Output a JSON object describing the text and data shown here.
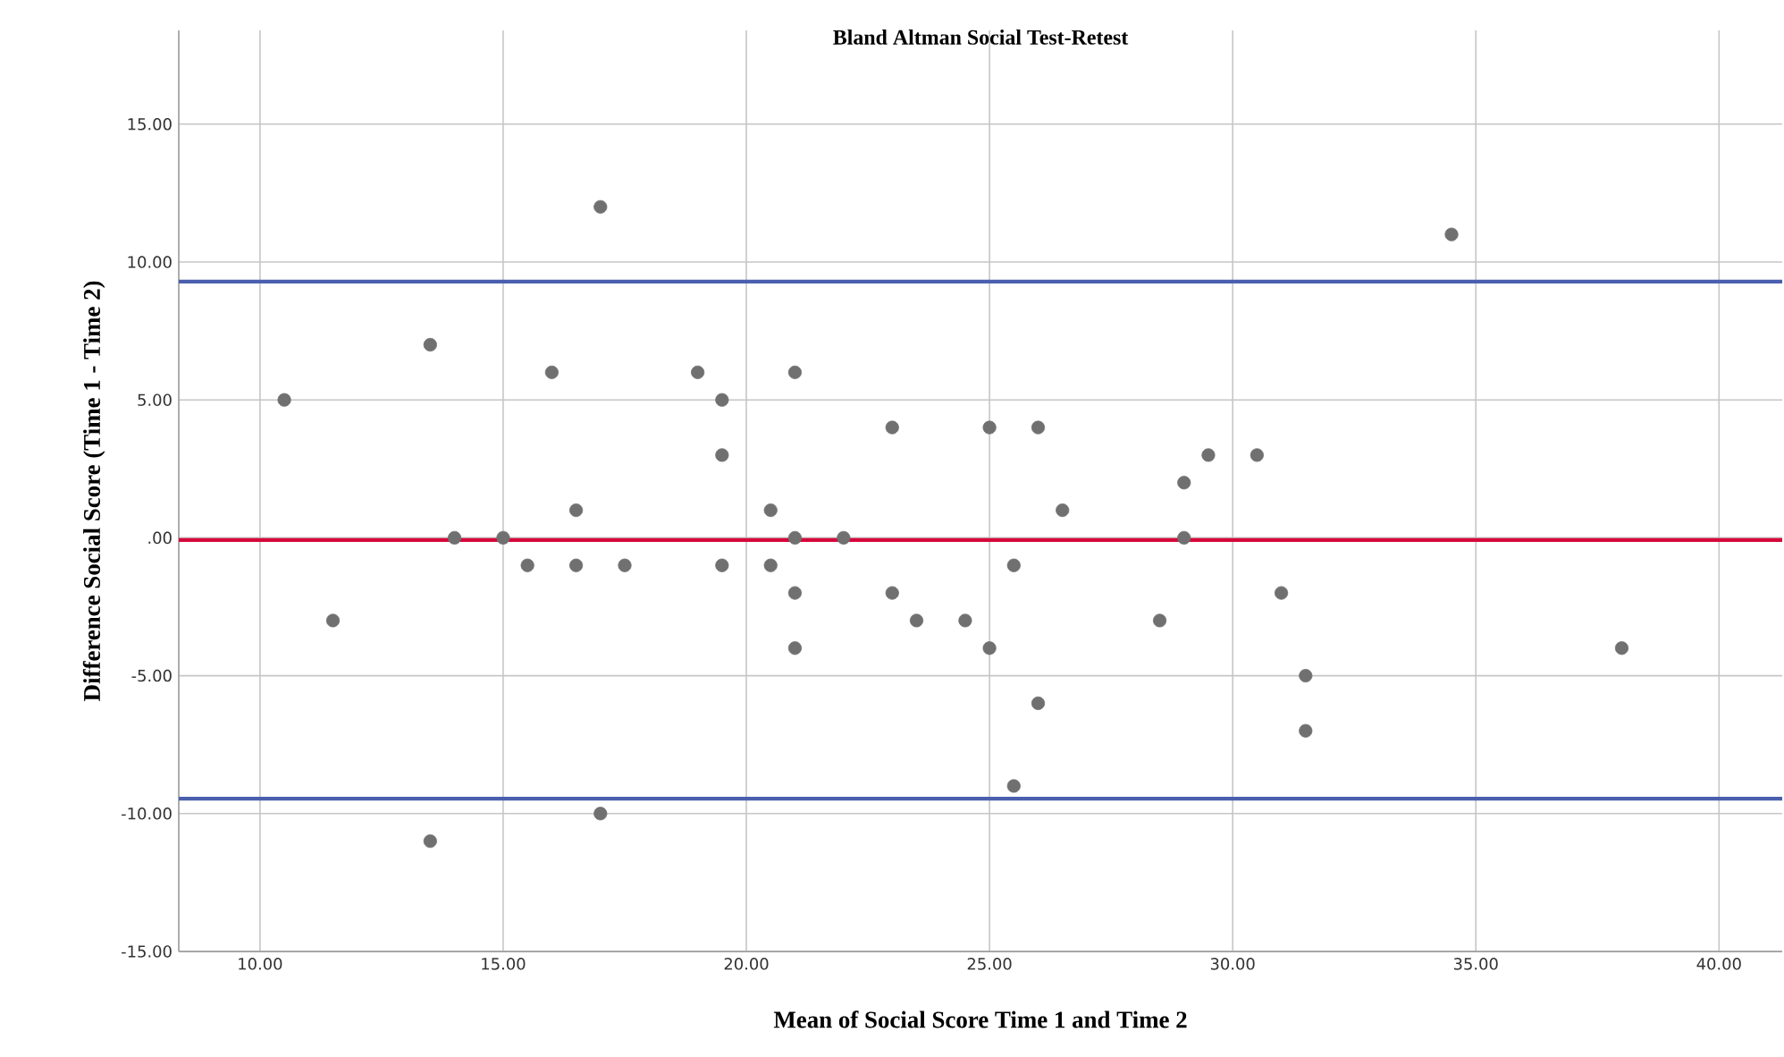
{
  "chart_data": {
    "type": "scatter",
    "title": "Bland Altman Social Test-Retest",
    "xlabel": "Mean of Social Score Time 1 and Time 2",
    "ylabel": "Difference Social Score (Time 1 - Time 2)",
    "x": [
      10.5,
      11.5,
      13.5,
      13.5,
      14,
      15,
      15.5,
      16,
      16.5,
      16.5,
      17,
      17,
      17.5,
      19,
      19.5,
      19.5,
      19.5,
      20.5,
      20.5,
      21,
      21,
      21,
      21,
      22,
      23,
      23,
      23.5,
      24.5,
      25,
      25,
      25.5,
      25.5,
      26,
      26,
      26.5,
      28.5,
      29,
      29,
      29.5,
      30.5,
      31,
      31.5,
      31.5,
      34.5,
      38
    ],
    "values": [
      5,
      -3,
      7,
      -11,
      0,
      0,
      -1,
      6,
      1,
      -1,
      12,
      -10,
      -1,
      6,
      5,
      3,
      -1,
      1,
      -1,
      6,
      0,
      -2,
      -4,
      0,
      4,
      -2,
      -3,
      -3,
      4,
      -4,
      -1,
      -9,
      4,
      -6,
      1,
      -3,
      2,
      0,
      3,
      3,
      -2,
      -5,
      -7,
      11,
      -4
    ],
    "color": "#707070",
    "marker": "circle",
    "grid": true,
    "xlim": [
      8.33,
      41.3
    ],
    "ylim": [
      -15,
      18.4
    ],
    "xticks": [
      {
        "value": 10,
        "label": "10.00"
      },
      {
        "value": 15,
        "label": "15.00"
      },
      {
        "value": 20,
        "label": "20.00"
      },
      {
        "value": 25,
        "label": "25.00"
      },
      {
        "value": 30,
        "label": "30.00"
      },
      {
        "value": 35,
        "label": "35.00"
      },
      {
        "value": 40,
        "label": "40.00"
      }
    ],
    "yticks": [
      {
        "value": -15,
        "label": "-15.00"
      },
      {
        "value": -10,
        "label": "-10.00"
      },
      {
        "value": -5,
        "label": "-5.00"
      },
      {
        "value": 0,
        "label": ".00"
      },
      {
        "value": 5,
        "label": "5.00"
      },
      {
        "value": 10,
        "label": "10.00"
      },
      {
        "value": 15,
        "label": "15.00"
      }
    ],
    "ref_lines": [
      {
        "axis": "y",
        "value": 9.29,
        "color": "#4a5fae"
      },
      {
        "axis": "y",
        "value": -0.08,
        "color": "#d6083b"
      },
      {
        "axis": "y",
        "value": -9.46,
        "color": "#4a5fae"
      }
    ]
  }
}
